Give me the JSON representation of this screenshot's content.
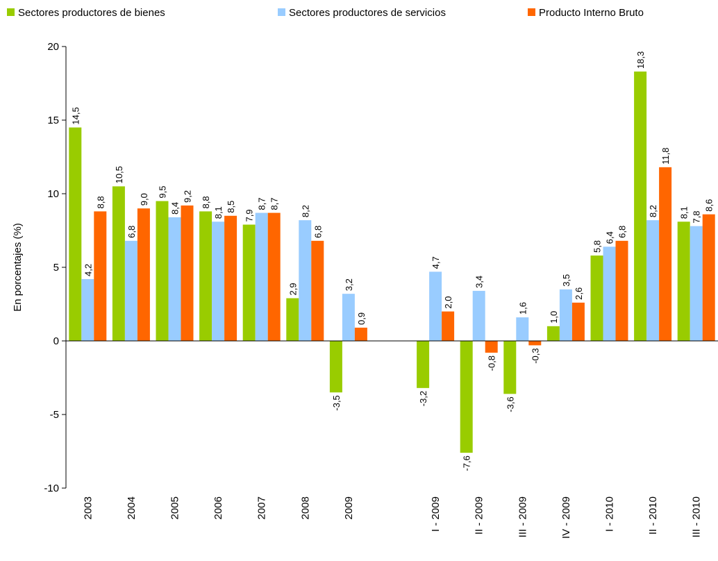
{
  "chart_data": {
    "type": "bar",
    "y_label": "En porcentajes (%)",
    "categories": [
      "2003",
      "2004",
      "2005",
      "2006",
      "2007",
      "2008",
      "2009",
      null,
      "I - 2009",
      "II - 2009",
      "III - 2009",
      "IV - 2009",
      "I - 2010",
      "II - 2010",
      "III - 2010"
    ],
    "series": [
      {
        "name": "Sectores productores de bienes",
        "color": "#99cc00",
        "values": [
          14.5,
          10.5,
          9.5,
          8.8,
          7.9,
          2.9,
          -3.5,
          null,
          -3.2,
          -7.6,
          -3.6,
          1.0,
          5.8,
          18.3,
          8.1
        ],
        "value_labels": [
          "14,5",
          "10,5",
          "9,5",
          "8,8",
          "7,9",
          "2,9",
          "-3,5",
          null,
          "-3,2",
          "-7,6",
          "-3,6",
          "1,0",
          "5,8",
          "18,3",
          "8,1"
        ]
      },
      {
        "name": "Sectores productores de servicios",
        "color": "#99ccff",
        "values": [
          4.2,
          6.8,
          8.4,
          8.1,
          8.7,
          8.2,
          3.2,
          null,
          4.7,
          3.4,
          1.6,
          3.5,
          6.4,
          8.2,
          7.8
        ],
        "value_labels": [
          "4,2",
          "6,8",
          "8,4",
          "8,1",
          "8,7",
          "8,2",
          "3,2",
          null,
          "4,7",
          "3,4",
          "1,6",
          "3,5",
          "6,4",
          "8,2",
          "7,8"
        ]
      },
      {
        "name": "Producto Interno Bruto",
        "color": "#ff6600",
        "values": [
          8.8,
          9.0,
          9.2,
          8.5,
          8.7,
          6.8,
          0.9,
          null,
          2.0,
          -0.8,
          -0.3,
          2.6,
          6.8,
          11.8,
          8.6
        ],
        "value_labels": [
          "8,8",
          "9,0",
          "9,2",
          "8,5",
          "8,7",
          "6,8",
          "0,9",
          null,
          "2,0",
          "-0,8",
          "-0,3",
          "2,6",
          "6,8",
          "11,8",
          "8,6"
        ]
      }
    ],
    "ylim": [
      -10,
      20
    ],
    "yticks": [
      -10,
      -5,
      0,
      5,
      10,
      15,
      20
    ],
    "grid": false,
    "legend": "top"
  }
}
